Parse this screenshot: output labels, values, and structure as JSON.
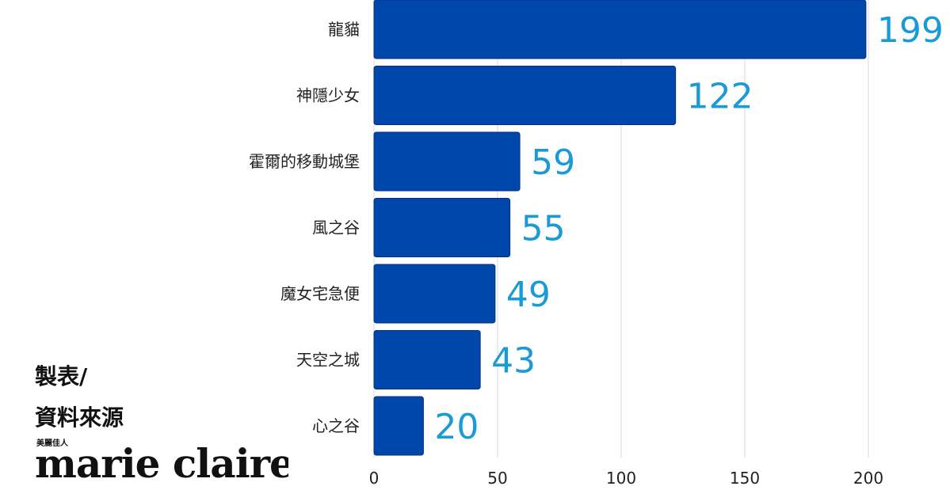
{
  "chart_data": {
    "type": "bar",
    "orientation": "horizontal",
    "categories": [
      "龍貓",
      "神隱少女",
      "霍爾的移動城堡",
      "風之谷",
      "魔女宅急便",
      "天空之城",
      "心之谷"
    ],
    "values": [
      199,
      122,
      59,
      55,
      49,
      43,
      20
    ],
    "xlim": [
      0,
      200
    ],
    "xticks": [
      0,
      50,
      100,
      150,
      200
    ],
    "grid": "vertical",
    "bar_color": "#0047ab",
    "value_label_color": "#1a9ad6",
    "legend": "none"
  },
  "credit": {
    "line1": "製表/",
    "line2": "資料來源",
    "logo_sub": "美麗佳人",
    "logo_main": "marie claire"
  }
}
